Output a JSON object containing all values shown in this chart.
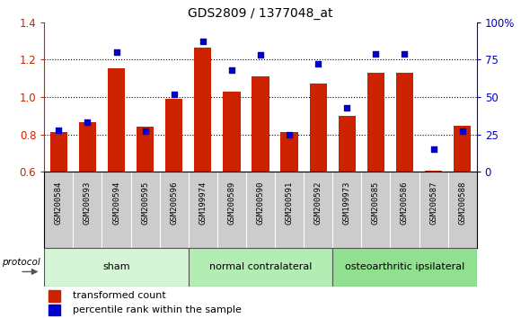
{
  "title": "GDS2809 / 1377048_at",
  "categories": [
    "GSM200584",
    "GSM200593",
    "GSM200594",
    "GSM200595",
    "GSM200596",
    "GSM199974",
    "GSM200589",
    "GSM200590",
    "GSM200591",
    "GSM200592",
    "GSM199973",
    "GSM200585",
    "GSM200586",
    "GSM200587",
    "GSM200588"
  ],
  "red_values": [
    0.81,
    0.865,
    1.155,
    0.84,
    0.99,
    1.265,
    1.03,
    1.11,
    0.81,
    1.07,
    0.9,
    1.13,
    1.13,
    0.605,
    0.845
  ],
  "blue_values": [
    28,
    33,
    80,
    27,
    52,
    87,
    68,
    78,
    25,
    72,
    43,
    79,
    79,
    15,
    27
  ],
  "groups": [
    {
      "label": "sham",
      "start": 0,
      "end": 5,
      "color": "#d6f5d6"
    },
    {
      "label": "normal contralateral",
      "start": 5,
      "end": 10,
      "color": "#b3edb3"
    },
    {
      "label": "osteoarthritic ipsilateral",
      "start": 10,
      "end": 15,
      "color": "#90e090"
    }
  ],
  "ylim_left": [
    0.6,
    1.4
  ],
  "ylim_right": [
    0,
    100
  ],
  "yticks_left": [
    0.6,
    0.8,
    1.0,
    1.2,
    1.4
  ],
  "yticks_right": [
    0,
    25,
    50,
    75,
    100
  ],
  "ytick_labels_right": [
    "0",
    "25",
    "50",
    "75",
    "100%"
  ],
  "bar_color": "#cc2200",
  "dot_color": "#0000cc",
  "bar_width": 0.6,
  "legend_items": [
    {
      "label": "transformed count",
      "color": "#cc2200"
    },
    {
      "label": "percentile rank within the sample",
      "color": "#0000cc"
    }
  ],
  "protocol_label": "protocol",
  "bg_color": "#ffffff",
  "cell_bg": "#cccccc",
  "group_border": "#555555"
}
